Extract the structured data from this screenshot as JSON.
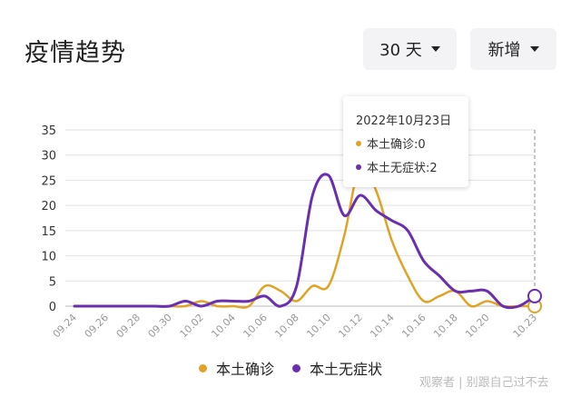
{
  "header": {
    "title": "疫情趋势"
  },
  "controls": {
    "range_label": "30 天",
    "mode_label": "新增"
  },
  "tooltip": {
    "date": "2022年10月23日",
    "rows": [
      {
        "label": "本土确诊:0",
        "color": "#e0a326"
      },
      {
        "label": "本土无症状:2",
        "color": "#6a2fb0"
      }
    ]
  },
  "legend": [
    {
      "label": "本土确诊",
      "color": "#e0a326"
    },
    {
      "label": "本土无症状",
      "color": "#6a2fb0"
    }
  ],
  "watermark": "观察者 | 别跟自己过不去",
  "colors": {
    "confirmed": "#e0a326",
    "asymptomatic": "#6a2fb0",
    "grid": "#e0e0e0"
  },
  "chart_data": {
    "type": "line",
    "title": "",
    "xlabel": "",
    "ylabel": "",
    "ylim": [
      0,
      35
    ],
    "yticks": [
      0,
      5,
      10,
      15,
      20,
      25,
      30,
      35
    ],
    "grid": true,
    "legend_position": "bottom",
    "x_tick_labels": [
      "09.24",
      "09.26",
      "09.28",
      "09.30",
      "10.02",
      "10.04",
      "10.06",
      "10.08",
      "10.10",
      "10.12",
      "10.14",
      "10.16",
      "10.18",
      "10.20",
      "10.23"
    ],
    "x": [
      "09.24",
      "09.25",
      "09.26",
      "09.27",
      "09.28",
      "09.29",
      "09.30",
      "10.01",
      "10.02",
      "10.03",
      "10.04",
      "10.05",
      "10.06",
      "10.07",
      "10.08",
      "10.09",
      "10.10",
      "10.11",
      "10.12",
      "10.13",
      "10.14",
      "10.15",
      "10.16",
      "10.17",
      "10.18",
      "10.19",
      "10.20",
      "10.21",
      "10.22",
      "10.23"
    ],
    "series": [
      {
        "name": "本土确诊",
        "color": "#e0a326",
        "values": [
          0,
          0,
          0,
          0,
          0,
          0,
          0,
          0,
          1,
          0,
          0,
          0,
          4,
          3,
          1,
          4,
          4,
          14,
          28,
          23,
          13,
          6,
          1,
          2,
          3,
          0,
          1,
          0,
          0,
          0
        ]
      },
      {
        "name": "本土无症状",
        "color": "#6a2fb0",
        "values": [
          0,
          0,
          0,
          0,
          0,
          0,
          0,
          1,
          0,
          1,
          1,
          1,
          2,
          0,
          4,
          22,
          26,
          18,
          22,
          19,
          17,
          15,
          9,
          6,
          3,
          3,
          3,
          0,
          0,
          2
        ]
      }
    ]
  }
}
